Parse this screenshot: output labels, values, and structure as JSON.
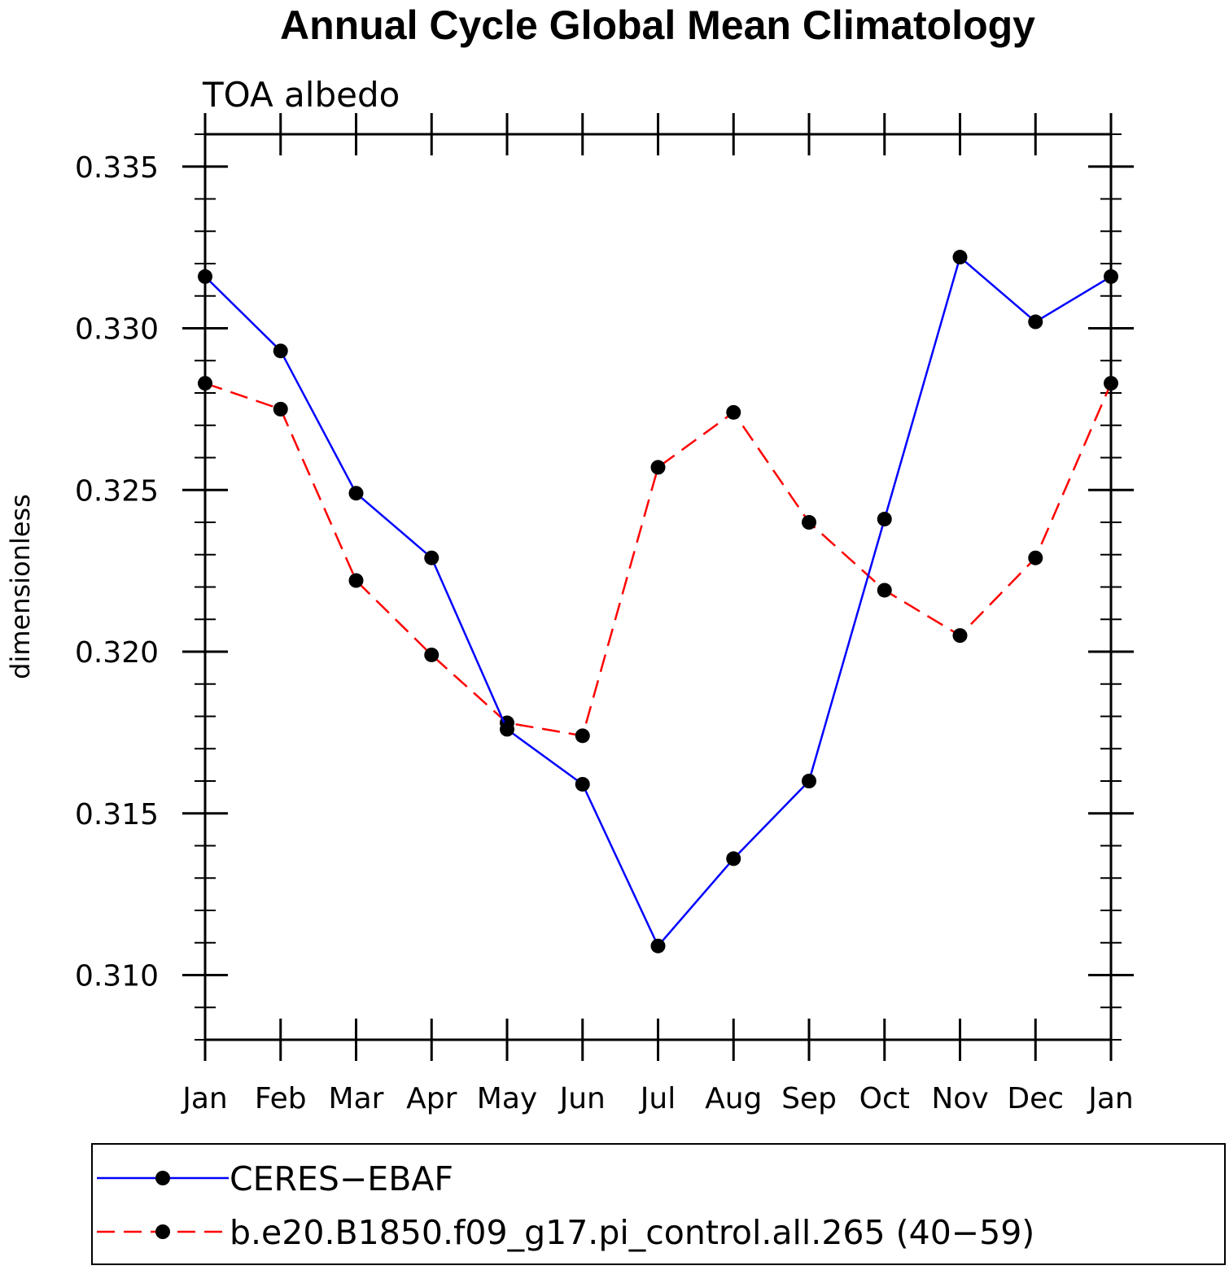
{
  "chart_data": {
    "type": "line",
    "title": "Annual Cycle Global Mean Climatology",
    "subtitle": "TOA albedo",
    "xlabel": "",
    "ylabel": "dimensionless",
    "categories": [
      "Jan",
      "Feb",
      "Mar",
      "Apr",
      "May",
      "Jun",
      "Jul",
      "Aug",
      "Sep",
      "Oct",
      "Nov",
      "Dec",
      "Jan"
    ],
    "ylim": [
      0.308,
      0.336
    ],
    "yticks": [
      0.31,
      0.315,
      0.32,
      0.325,
      0.33,
      0.335
    ],
    "ytick_labels": [
      "0.310",
      "0.315",
      "0.320",
      "0.325",
      "0.330",
      "0.335"
    ],
    "grid": false,
    "legend_position": "bottom",
    "series": [
      {
        "name": "CERES−EBAF",
        "color": "#0000ff",
        "dash": "solid",
        "marker": "filled-circle",
        "values": [
          0.3316,
          0.3293,
          0.3249,
          0.3229,
          0.3176,
          0.3159,
          0.3109,
          0.3136,
          0.316,
          0.3241,
          0.3322,
          0.3302,
          0.3316
        ]
      },
      {
        "name": "b.e20.B1850.f09_g17.pi_control.all.265 (40−59)",
        "color": "#ff0000",
        "dash": "dashed",
        "marker": "filled-circle",
        "values": [
          0.3283,
          0.3275,
          0.3222,
          0.3199,
          0.3178,
          0.3174,
          0.3257,
          0.3274,
          0.324,
          0.3219,
          0.3205,
          0.3229,
          0.3283
        ]
      }
    ]
  }
}
